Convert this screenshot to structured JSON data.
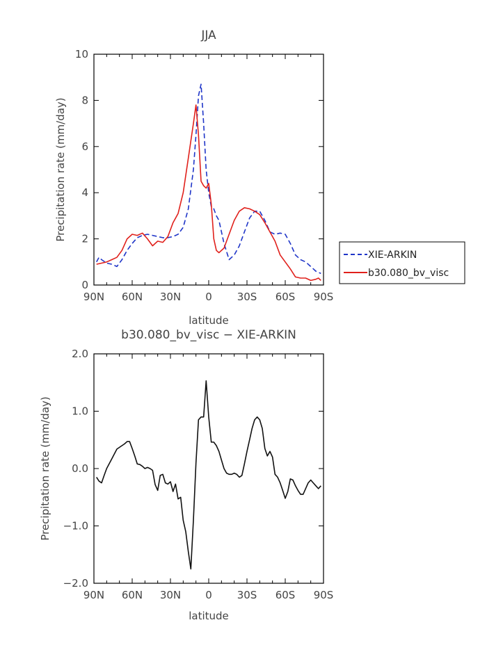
{
  "chart_data": [
    {
      "type": "line",
      "title": "JJA",
      "xlabel": "latitude",
      "ylabel": "Precipitation rate (mm/day)",
      "xlim": [
        90,
        -90
      ],
      "ylim": [
        0,
        10
      ],
      "xticks": [
        90,
        60,
        30,
        0,
        -30,
        -60,
        -90
      ],
      "xtick_labels": [
        "90N",
        "60N",
        "30N",
        "0",
        "30S",
        "60S",
        "90S"
      ],
      "yticks": [
        0,
        2,
        4,
        6,
        8,
        10
      ],
      "ytick_labels": [
        "0",
        "2",
        "4",
        "6",
        "8",
        "10"
      ],
      "grid": false,
      "legend_position": "right",
      "series": [
        {
          "name": "XIE-ARKIN",
          "color": "#1f35c8",
          "dash": "dashed",
          "x": [
            88,
            86,
            84,
            80,
            76,
            72,
            68,
            64,
            60,
            56,
            52,
            48,
            44,
            40,
            36,
            32,
            28,
            24,
            20,
            16,
            12,
            10,
            8,
            6,
            4,
            2,
            0,
            -2,
            -4,
            -6,
            -8,
            -12,
            -16,
            -20,
            -24,
            -28,
            -32,
            -36,
            -40,
            -44,
            -48,
            -52,
            -56,
            -60,
            -64,
            -68,
            -72,
            -76,
            -80,
            -84,
            -88
          ],
          "y": [
            1.0,
            1.2,
            1.1,
            0.95,
            0.9,
            0.8,
            1.1,
            1.5,
            1.8,
            2.05,
            2.15,
            2.2,
            2.15,
            2.1,
            2.05,
            2.05,
            2.1,
            2.2,
            2.5,
            3.3,
            5.0,
            6.5,
            8.2,
            8.7,
            7.0,
            5.0,
            4.0,
            3.4,
            3.3,
            3.0,
            2.8,
            1.8,
            1.1,
            1.3,
            1.7,
            2.3,
            2.9,
            3.2,
            3.2,
            2.8,
            2.3,
            2.2,
            2.25,
            2.2,
            1.8,
            1.3,
            1.1,
            1.0,
            0.8,
            0.6,
            0.5
          ]
        },
        {
          "name": "b30.080_bv_visc",
          "color": "#e0201b",
          "dash": "solid",
          "x": [
            88,
            84,
            80,
            76,
            72,
            68,
            64,
            60,
            56,
            52,
            48,
            44,
            40,
            36,
            32,
            28,
            24,
            20,
            16,
            12,
            10,
            8,
            6,
            4,
            2,
            0,
            -2,
            -4,
            -6,
            -8,
            -12,
            -16,
            -20,
            -24,
            -28,
            -32,
            -36,
            -40,
            -44,
            -48,
            -52,
            -56,
            -60,
            -64,
            -68,
            -72,
            -76,
            -80,
            -84,
            -86,
            -88
          ],
          "y": [
            0.9,
            0.95,
            1.0,
            1.1,
            1.2,
            1.5,
            2.0,
            2.2,
            2.15,
            2.25,
            2.0,
            1.7,
            1.9,
            1.85,
            2.1,
            2.7,
            3.1,
            4.0,
            5.5,
            7.0,
            7.8,
            6.5,
            4.5,
            4.3,
            4.2,
            4.4,
            3.5,
            2.0,
            1.5,
            1.4,
            1.6,
            2.2,
            2.8,
            3.2,
            3.35,
            3.3,
            3.2,
            3.05,
            2.7,
            2.3,
            1.9,
            1.3,
            1.0,
            0.7,
            0.35,
            0.3,
            0.3,
            0.2,
            0.25,
            0.3,
            0.2
          ]
        }
      ]
    },
    {
      "type": "line",
      "title": "b30.080_bv_visc − XIE-ARKIN",
      "xlabel": "latitude",
      "ylabel": "Precipitation rate (mm/day)",
      "xlim": [
        90,
        -90
      ],
      "ylim": [
        -2,
        2
      ],
      "xticks": [
        90,
        60,
        30,
        0,
        -30,
        -60,
        -90
      ],
      "xtick_labels": [
        "90N",
        "60N",
        "30N",
        "0",
        "30S",
        "60S",
        "90S"
      ],
      "yticks": [
        -2,
        -1,
        0,
        1,
        2
      ],
      "ytick_labels": [
        "−2.0",
        "−1.0",
        "0.0",
        "1.0",
        "2.0"
      ],
      "grid": false,
      "series": [
        {
          "color": "#111111",
          "dash": "solid",
          "x": [
            88,
            86,
            84,
            82,
            80,
            76,
            72,
            68,
            66,
            64,
            62,
            60,
            58,
            56,
            54,
            52,
            50,
            48,
            46,
            44,
            42,
            40,
            38,
            36,
            34,
            32,
            30,
            28,
            26,
            24,
            22,
            20,
            18,
            16,
            14,
            12,
            10,
            8,
            6,
            4,
            2,
            0,
            -2,
            -4,
            -6,
            -8,
            -10,
            -12,
            -14,
            -16,
            -18,
            -20,
            -22,
            -24,
            -26,
            -28,
            -30,
            -32,
            -34,
            -36,
            -38,
            -40,
            -42,
            -44,
            -46,
            -48,
            -50,
            -52,
            -54,
            -56,
            -58,
            -60,
            -62,
            -64,
            -66,
            -68,
            -70,
            -72,
            -74,
            -76,
            -78,
            -80,
            -82,
            -84,
            -86,
            -88
          ],
          "y": [
            -0.15,
            -0.22,
            -0.25,
            -0.12,
            0.0,
            0.17,
            0.34,
            0.4,
            0.43,
            0.47,
            0.47,
            0.35,
            0.22,
            0.08,
            0.07,
            0.04,
            0.0,
            0.02,
            0.0,
            -0.03,
            -0.28,
            -0.38,
            -0.12,
            -0.1,
            -0.25,
            -0.27,
            -0.23,
            -0.4,
            -0.27,
            -0.53,
            -0.5,
            -0.9,
            -1.1,
            -1.45,
            -1.75,
            -0.9,
            0.1,
            0.85,
            0.9,
            0.9,
            1.53,
            0.9,
            0.46,
            0.46,
            0.4,
            0.3,
            0.15,
            0.0,
            -0.08,
            -0.1,
            -0.1,
            -0.08,
            -0.1,
            -0.15,
            -0.12,
            0.08,
            0.3,
            0.5,
            0.7,
            0.85,
            0.9,
            0.85,
            0.7,
            0.35,
            0.22,
            0.3,
            0.2,
            -0.1,
            -0.15,
            -0.25,
            -0.38,
            -0.52,
            -0.4,
            -0.18,
            -0.2,
            -0.3,
            -0.38,
            -0.45,
            -0.45,
            -0.35,
            -0.25,
            -0.2,
            -0.25,
            -0.3,
            -0.35,
            -0.3
          ]
        }
      ]
    }
  ]
}
